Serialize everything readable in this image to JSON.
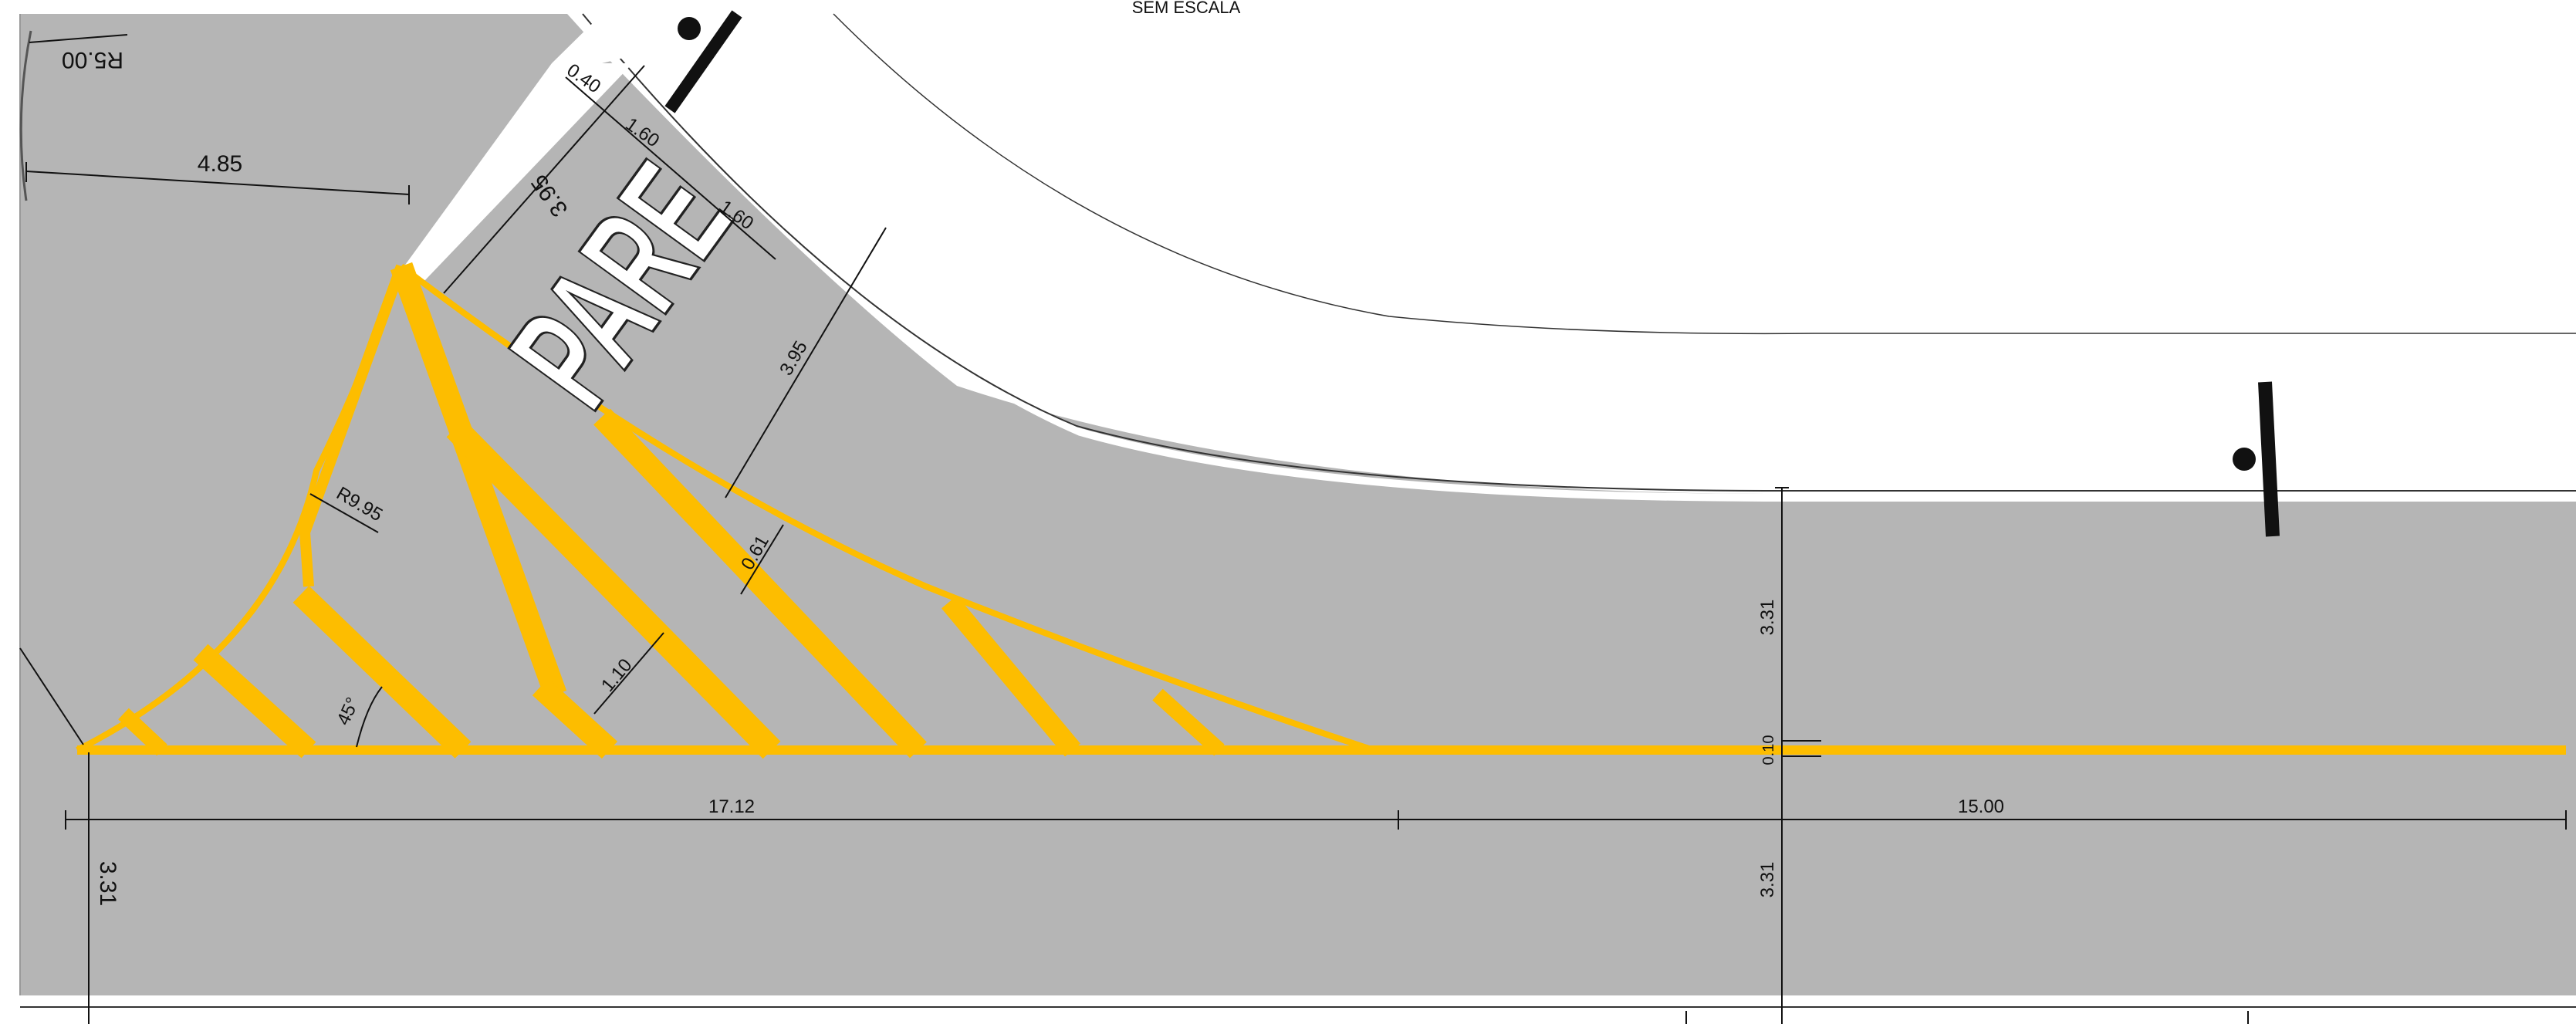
{
  "header": {
    "scale_note": "SEM ESCALA"
  },
  "colors": {
    "pavement": "#B5B5B5",
    "background": "#FFFFFF",
    "marking_yellow": "#FDBD00",
    "marking_white": "#FFFFFF",
    "ink": "#111111"
  },
  "road_marking": {
    "text": "PARE"
  },
  "dimensions": {
    "r5": "R5.00",
    "d4_85": "4.85",
    "d0_40": "0.40",
    "d1_60_a": "1.60",
    "d1_60_b": "1.60",
    "d3_95_a": "3.95",
    "d3_95_b": "3.95",
    "r9_95": "R9.95",
    "d0_61": "0.61",
    "d1_10": "1.10",
    "angle_45": "45°",
    "d3_31_right_upper": "3.31",
    "d0_10": "0.10",
    "d17_12": "17.12",
    "d15_00": "15.00",
    "d3_31_left": "3.31",
    "d3_31_right_lower": "3.31"
  },
  "icons": {
    "sign_post_left": "traffic-sign-post-icon",
    "sign_post_right": "traffic-sign-post-icon"
  }
}
